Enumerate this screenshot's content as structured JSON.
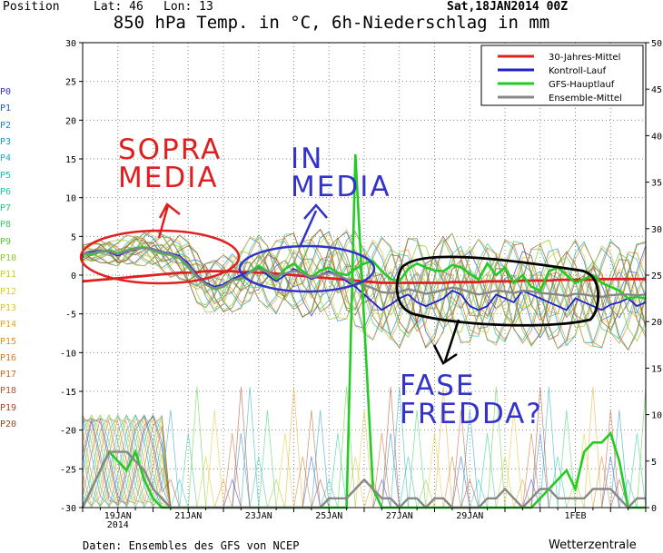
{
  "header": {
    "position_label": "Position",
    "lat_label": "Lat: 46",
    "lon_label": "Lon: 13",
    "date_run": "Sat,18JAN2014 00Z",
    "title": "850 hPa Temp. in °C, 6h-Niederschlag in mm"
  },
  "footer": {
    "source": "Daten: Ensembles des GFS von NCEP",
    "brand": "Wetterzentrale"
  },
  "members": [
    {
      "label": "P0",
      "color": "#3333cc"
    },
    {
      "label": "P1",
      "color": "#2255cc"
    },
    {
      "label": "P2",
      "color": "#1f7fcc"
    },
    {
      "label": "P3",
      "color": "#1a9ac8"
    },
    {
      "label": "P4",
      "color": "#17afc0"
    },
    {
      "label": "P5",
      "color": "#17c0b8"
    },
    {
      "label": "P6",
      "color": "#18c8a0"
    },
    {
      "label": "P7",
      "color": "#20cc88"
    },
    {
      "label": "P8",
      "color": "#33cc66"
    },
    {
      "label": "P9",
      "color": "#55cc33"
    },
    {
      "label": "P10",
      "color": "#88cc22"
    },
    {
      "label": "P11",
      "color": "#cccc22"
    },
    {
      "label": "P12",
      "color": "#e0cc22"
    },
    {
      "label": "P13",
      "color": "#e8c020"
    },
    {
      "label": "P14",
      "color": "#e8a820"
    },
    {
      "label": "P15",
      "color": "#e09020"
    },
    {
      "label": "P16",
      "color": "#d87820"
    },
    {
      "label": "P17",
      "color": "#cc6622"
    },
    {
      "label": "P18",
      "color": "#bb5522"
    },
    {
      "label": "P19",
      "color": "#aa4422"
    },
    {
      "label": "P20",
      "color": "#994422"
    }
  ],
  "annotations": {
    "sopra_media": "SOPRA\nMEDIA",
    "in_media": "IN\nMEDIA",
    "fase_freddad": "FASE\nFREDDA?",
    "ink_red": "#e02020",
    "ink_blue": "#3333cc",
    "ink_black": "#000000"
  },
  "chart_data": {
    "type": "line",
    "x_ticks": [
      "19JAN\n2014",
      "21JAN",
      "23JAN",
      "25JAN",
      "27JAN",
      "29JAN",
      "1FEB"
    ],
    "y_left": {
      "label": "",
      "lim": [
        -30,
        30
      ],
      "ticks": [
        30,
        25,
        20,
        15,
        10,
        5,
        0,
        -5,
        -10,
        -15,
        -20,
        -25,
        -30
      ]
    },
    "y_right": {
      "label": "",
      "lim": [
        0,
        50
      ],
      "ticks": [
        50,
        45,
        40,
        35,
        30,
        25,
        20,
        15,
        10,
        5,
        0
      ]
    },
    "grid": true,
    "legend_placement": "top-right",
    "x_hours": [
      0,
      6,
      12,
      18,
      24,
      30,
      36,
      42,
      48,
      54,
      60,
      66,
      72,
      78,
      84,
      90,
      96,
      102,
      108,
      114,
      120,
      126,
      132,
      138,
      144,
      150,
      156,
      162,
      168,
      174,
      180,
      186,
      192,
      198,
      204,
      210,
      216,
      222,
      228,
      234,
      240,
      246,
      252,
      258,
      264,
      270,
      276,
      282,
      288,
      294,
      300,
      306,
      312,
      318,
      324,
      330,
      336,
      342,
      348,
      354,
      360,
      366,
      372,
      378,
      384
    ],
    "series": [
      {
        "name": "30-Jahres-Mittel",
        "color": "#e02020",
        "axis": "left",
        "values": [
          -0.8,
          -0.7,
          -0.6,
          -0.5,
          -0.4,
          -0.3,
          -0.2,
          -0.1,
          0.0,
          0.1,
          0.2,
          0.3,
          0.3,
          0.4,
          0.5,
          0.5,
          0.5,
          0.5,
          0.4,
          0.4,
          0.3,
          0.3,
          0.2,
          0.1,
          0.0,
          -0.1,
          -0.2,
          -0.3,
          -0.4,
          -0.5,
          -0.6,
          -0.7,
          -0.8,
          -0.9,
          -1.0,
          -1.0,
          -1.0,
          -1.0,
          -1.0,
          -1.0,
          -1.0,
          -1.0,
          -0.9,
          -0.9,
          -0.9,
          -0.9,
          -0.8,
          -0.8,
          -0.8,
          -0.8,
          -0.7,
          -0.7,
          -0.7,
          -0.7,
          -0.6,
          -0.6,
          -0.6,
          -0.6,
          -0.6,
          -0.5,
          -0.5,
          -0.5,
          -0.5,
          -0.5,
          -0.5
        ]
      },
      {
        "name": "Kontroll-Lauf",
        "color": "#2020cc",
        "axis": "left",
        "values": [
          2.8,
          3.0,
          3.2,
          3.0,
          2.5,
          3.0,
          3.3,
          3.5,
          3.4,
          3.0,
          2.8,
          2.5,
          1.5,
          0.0,
          -1.0,
          -1.5,
          -1.2,
          -0.5,
          0.0,
          0.5,
          1.0,
          0.0,
          -0.8,
          0.0,
          0.8,
          0.2,
          -0.5,
          0.0,
          0.5,
          0.0,
          -0.8,
          -1.5,
          -2.5,
          -3.5,
          -4.5,
          -3.8,
          -3.0,
          -2.5,
          -3.5,
          -4.0,
          -3.5,
          -3.0,
          -2.0,
          -2.5,
          -4.0,
          -4.5,
          -4.0,
          -2.5,
          -3.0,
          -3.5,
          -2.0,
          -2.5,
          -3.0,
          -3.5,
          -4.0,
          -4.5,
          -3.0,
          -3.5,
          -4.0,
          -4.5,
          -3.8,
          -3.5,
          -3.0,
          -4.0,
          -3.5
        ]
      },
      {
        "name": "GFS-Hauptlauf",
        "color": "#22cc22",
        "axis": "left",
        "values": [
          2.8,
          2.6,
          3.0,
          3.2,
          2.8,
          3.2,
          3.5,
          3.6,
          3.2,
          2.8,
          2.6,
          2.2,
          1.0,
          -0.2,
          -1.2,
          -1.8,
          -1.5,
          -0.6,
          -0.5,
          0.4,
          1.2,
          0.5,
          -0.5,
          0.8,
          1.5,
          0.5,
          -0.3,
          0.6,
          1.0,
          0.3,
          0.0,
          0.8,
          1.5,
          1.8,
          0.5,
          -0.5,
          -0.8,
          0.8,
          1.5,
          1.0,
          0.6,
          0.5,
          1.3,
          1.0,
          0.2,
          -0.6,
          1.5,
          0.0,
          1.0,
          -1.0,
          0.0,
          -1.5,
          -2.0,
          0.5,
          1.0,
          0.0,
          -1.0,
          -0.5,
          0.0,
          -1.0,
          -1.5,
          -2.0,
          -3.0,
          -2.8,
          -3.0
        ]
      },
      {
        "name": "Ensemble-Mittel",
        "color": "#888888",
        "axis": "left",
        "values": [
          2.8,
          2.8,
          3.1,
          3.1,
          2.7,
          3.1,
          3.4,
          3.5,
          3.3,
          2.9,
          2.7,
          2.3,
          1.2,
          -0.2,
          -1.2,
          -1.7,
          -1.4,
          -0.7,
          -0.3,
          0.3,
          0.8,
          0.4,
          -0.2,
          0.2,
          0.6,
          0.2,
          -0.3,
          0.0,
          0.3,
          0.0,
          -0.5,
          -0.9,
          -1.3,
          -1.7,
          -2.2,
          -2.3,
          -2.2,
          -1.8,
          -2.1,
          -2.4,
          -2.2,
          -1.9,
          -1.6,
          -1.8,
          -2.2,
          -2.5,
          -2.3,
          -2.0,
          -2.1,
          -2.3,
          -2.0,
          -2.1,
          -2.3,
          -2.4,
          -2.5,
          -2.7,
          -2.4,
          -2.5,
          -2.7,
          -2.8,
          -2.6,
          -2.5,
          -2.5,
          -2.6,
          -2.5
        ]
      },
      {
        "name": "GFS-Hauptlauf",
        "color": "#22cc22",
        "axis": "right",
        "values": [
          0,
          2,
          4,
          6,
          5,
          4,
          6,
          3,
          1,
          0,
          0,
          0,
          0,
          0,
          0,
          0,
          0,
          0,
          0,
          0,
          0,
          0,
          0,
          0,
          0,
          0,
          0,
          0,
          0,
          0,
          0,
          38,
          20,
          2,
          0,
          0,
          0,
          0,
          0,
          0,
          0,
          0,
          0,
          0,
          0,
          0,
          0,
          0,
          0,
          0,
          0,
          0,
          1,
          2,
          3,
          4,
          2,
          6,
          7,
          7,
          8,
          5,
          0,
          0,
          0
        ]
      },
      {
        "name": "Ensemble-Mittel",
        "color": "#888888",
        "axis": "right",
        "values": [
          0,
          2,
          4,
          6,
          6,
          6,
          5,
          4,
          2,
          1,
          0,
          0,
          0,
          0,
          0,
          0,
          0,
          0,
          0,
          0,
          0,
          0,
          0,
          0,
          0,
          0,
          0,
          0,
          1,
          1,
          1,
          2,
          3,
          2,
          1,
          1,
          0,
          1,
          1,
          0,
          1,
          1,
          0,
          0,
          0,
          0,
          1,
          1,
          2,
          1,
          0,
          1,
          2,
          2,
          1,
          1,
          1,
          1,
          2,
          2,
          2,
          1,
          0,
          1,
          1
        ]
      }
    ]
  }
}
